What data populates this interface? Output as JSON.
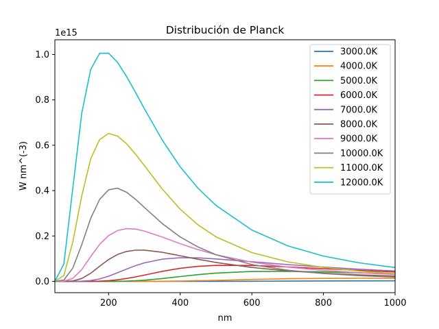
{
  "chart_data": {
    "type": "line",
    "title": "Distribución de Planck",
    "xlabel": "nm",
    "ylabel": "W nm^(-3)",
    "y_offset_label": "1e15",
    "xlim": [
      50,
      1000
    ],
    "ylim": [
      -0.05,
      1.065
    ],
    "x_ticks": [
      200,
      400,
      600,
      800,
      1000
    ],
    "x_tick_labels": [
      "200",
      "400",
      "600",
      "800",
      "1000"
    ],
    "y_ticks": [
      0.0,
      0.2,
      0.4,
      0.6,
      0.8,
      1.0
    ],
    "y_tick_labels": [
      "0.0",
      "0.2",
      "0.4",
      "0.6",
      "0.8",
      "1.0"
    ],
    "grid": false,
    "legend_position": "top-right",
    "x": [
      50,
      75,
      100,
      125,
      150,
      175,
      200,
      225,
      250,
      275,
      300,
      350,
      400,
      450,
      500,
      600,
      700,
      800,
      900,
      1000
    ],
    "series": [
      {
        "name": "3000.0K",
        "color": "#1f77b4",
        "values": [
          0,
          0,
          0,
          0,
          0,
          0,
          0,
          0,
          0,
          0,
          0,
          1e-05,
          4e-05,
          0.0001,
          0.0002,
          0.0006,
          0.0011,
          0.0016,
          0.0021,
          0.0024
        ]
      },
      {
        "name": "4000.0K",
        "color": "#ff7f0e",
        "values": [
          0,
          0,
          0,
          0,
          0,
          0,
          0,
          0,
          1e-05,
          3e-05,
          0.0001,
          0.0005,
          0.0014,
          0.0028,
          0.0045,
          0.0082,
          0.0112,
          0.0129,
          0.0135,
          0.0133
        ]
      },
      {
        "name": "5000.0K",
        "color": "#2ca02c",
        "values": [
          0,
          0,
          0,
          0,
          0,
          2e-05,
          0.0001,
          0.0004,
          0.0012,
          0.0027,
          0.0051,
          0.0122,
          0.0211,
          0.0296,
          0.0364,
          0.0434,
          0.0442,
          0.0415,
          0.0374,
          0.033
        ]
      },
      {
        "name": "6000.0K",
        "color": "#d62728",
        "values": [
          0,
          0,
          0,
          1e-05,
          0.0002,
          0.0009,
          0.0029,
          0.0067,
          0.0124,
          0.0195,
          0.0275,
          0.0441,
          0.0575,
          0.0661,
          0.0702,
          0.0699,
          0.0636,
          0.0557,
          0.0481,
          0.0413
        ]
      },
      {
        "name": "7000.0K",
        "color": "#9467bd",
        "values": [
          0,
          0,
          5e-05,
          0.0007,
          0.0036,
          0.0106,
          0.0226,
          0.0378,
          0.054,
          0.0691,
          0.0815,
          0.0978,
          0.104,
          0.1034,
          0.0988,
          0.0865,
          0.0738,
          0.0626,
          0.0534,
          0.0457
        ]
      },
      {
        "name": "8000.0K",
        "color": "#8c564b",
        "values": [
          0,
          2e-05,
          0.0017,
          0.0126,
          0.0356,
          0.0665,
          0.0959,
          0.1182,
          0.1317,
          0.1374,
          0.1375,
          0.1279,
          0.1128,
          0.0972,
          0.0832,
          0.0613,
          0.0462,
          0.0358,
          0.0284,
          0.0231
        ]
      },
      {
        "name": "9000.0K",
        "color": "#e377c2",
        "values": [
          0,
          0.0007,
          0.0129,
          0.0517,
          0.1088,
          0.163,
          0.2016,
          0.2239,
          0.2323,
          0.2304,
          0.2216,
          0.1951,
          0.1661,
          0.1397,
          0.1174,
          0.0845,
          0.0627,
          0.048,
          0.0378,
          0.0304
        ]
      },
      {
        "name": "10000.0K",
        "color": "#7f7f7f",
        "values": [
          0,
          0.0058,
          0.0582,
          0.1617,
          0.2773,
          0.3616,
          0.4036,
          0.4105,
          0.3929,
          0.3618,
          0.3255,
          0.2546,
          0.1958,
          0.1512,
          0.1175,
          0.074,
          0.0492,
          0.0343,
          0.0248,
          0.0185
        ]
      },
      {
        "name": "11000.0K",
        "color": "#bcbd22",
        "values": [
          0,
          0.0251,
          0.1733,
          0.3766,
          0.5399,
          0.6249,
          0.6522,
          0.6406,
          0.6068,
          0.5611,
          0.5101,
          0.4067,
          0.3179,
          0.2487,
          0.1961,
          0.1267,
          0.0861,
          0.0611,
          0.0449,
          0.034
        ]
      },
      {
        "name": "12000.0K",
        "color": "#17becf",
        "values": [
          0,
          0.0765,
          0.4094,
          0.7414,
          0.9339,
          1.0055,
          1.0057,
          0.9651,
          0.9036,
          0.8331,
          0.7611,
          0.6226,
          0.5049,
          0.4098,
          0.3346,
          0.2262,
          0.1567,
          0.1115,
          0.0814,
          0.0609
        ]
      }
    ]
  }
}
